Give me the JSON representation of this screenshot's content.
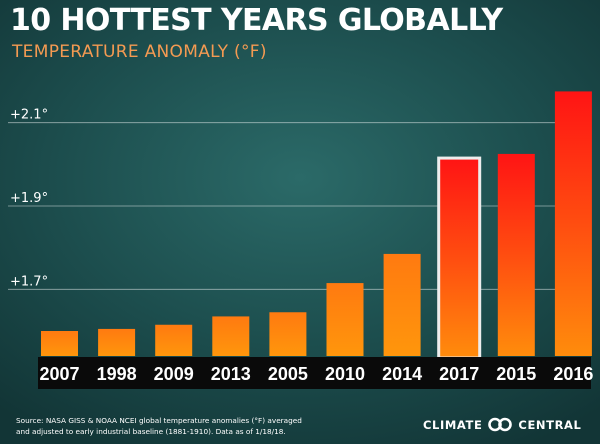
{
  "chart_data": {
    "type": "bar",
    "title": "10 HOTTEST YEARS GLOBALLY",
    "subtitle": "TEMPERATURE ANOMALY (°F)",
    "categories": [
      "2007",
      "1998",
      "2009",
      "2013",
      "2005",
      "2010",
      "2014",
      "2017",
      "2015",
      "2016"
    ],
    "values": [
      1.6,
      1.605,
      1.615,
      1.635,
      1.645,
      1.715,
      1.785,
      2.015,
      2.025,
      2.175
    ],
    "highlighted_category": "2017",
    "yticks": [
      {
        "value": 1.7,
        "label": "+1.7°"
      },
      {
        "value": 1.9,
        "label": "+1.9°"
      },
      {
        "value": 2.1,
        "label": "+2.1°"
      }
    ],
    "ylim": [
      1.54,
      2.26
    ],
    "grid": true,
    "xlabel": "",
    "ylabel": ""
  },
  "footer": {
    "source_line1": "Source: NASA GISS & NOAA NCEI global temperature anomalies (°F) averaged",
    "source_line2": "and adjusted to early industrial baseline (1881-1910). Data as of 1/18/18.",
    "brand_left": "CLIMATE",
    "brand_right": "CENTRAL"
  },
  "colors": {
    "bar_top": "#ff1616",
    "bar_bottom": "#ff8a0c",
    "highlight_outline": "#ededed",
    "axis_band": "#0a0a0a",
    "subtitle": "#f49a52"
  }
}
